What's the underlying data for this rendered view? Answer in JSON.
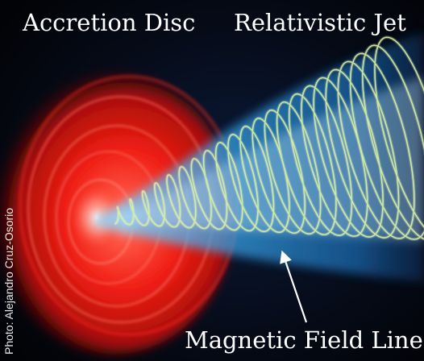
{
  "labels": {
    "accretion_disc": "Accretion Disc",
    "relativistic_jet": "Relativistic Jet",
    "magnetic_field_lines": "Magnetic Field Lines"
  },
  "credit": "Photo: Alejandro Cruz-Osorio",
  "colors": {
    "background": "#05070d",
    "disc": "#ff2418",
    "jet": "#2f9fe0",
    "field_lines": "#d8f0a0",
    "label_text": "#ffffff"
  }
}
